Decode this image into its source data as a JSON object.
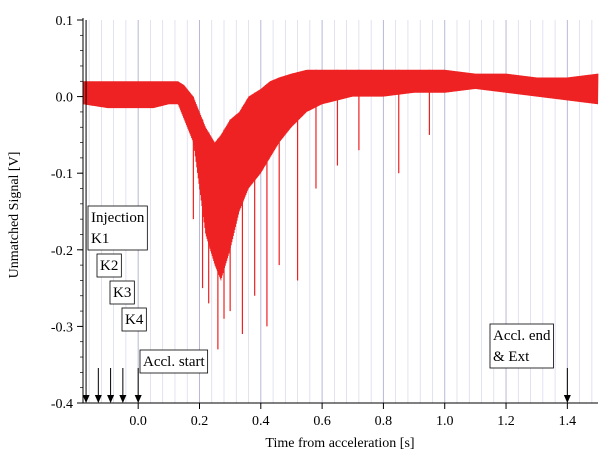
{
  "chart_data": {
    "type": "line",
    "xlabel": "Time from acceleration [s]",
    "ylabel": "Unmatched Signal [V]",
    "xlim": [
      -0.18,
      1.5
    ],
    "ylim": [
      -0.4,
      0.1
    ],
    "xticks": [
      0.0,
      0.2,
      0.4,
      0.6,
      0.8,
      1.0,
      1.2,
      1.4
    ],
    "xtick_labels": [
      "0.0",
      "0.2",
      "0.4",
      "0.6",
      "0.8",
      "1.0",
      "1.2",
      "1.4"
    ],
    "yticks": [
      0.1,
      0.0,
      -0.1,
      -0.2,
      -0.3,
      -0.4
    ],
    "ytick_labels": [
      "0.1",
      "0.0",
      "-0.1",
      "-0.2",
      "-0.3",
      "-0.4"
    ],
    "grid": "vertical",
    "series_color": "#ee2222",
    "series": [
      {
        "x": [
          -0.18,
          -0.1,
          0.0,
          0.05,
          0.1,
          0.13,
          0.15,
          0.18,
          0.2,
          0.22,
          0.25,
          0.27,
          0.3,
          0.33,
          0.36,
          0.4,
          0.43,
          0.46,
          0.5,
          0.55,
          0.6,
          0.7,
          0.8,
          0.9,
          1.0,
          1.1,
          1.2,
          1.3,
          1.4,
          1.5
        ],
        "upper": [
          0.02,
          0.02,
          0.02,
          0.02,
          0.02,
          0.02,
          0.015,
          0.0,
          -0.02,
          -0.04,
          -0.06,
          -0.05,
          -0.03,
          -0.02,
          0.0,
          0.01,
          0.02,
          0.025,
          0.03,
          0.035,
          0.035,
          0.035,
          0.035,
          0.035,
          0.035,
          0.03,
          0.03,
          0.025,
          0.025,
          0.03
        ],
        "lower": [
          -0.01,
          -0.015,
          -0.015,
          -0.015,
          -0.01,
          -0.01,
          -0.03,
          -0.06,
          -0.12,
          -0.18,
          -0.22,
          -0.24,
          -0.2,
          -0.15,
          -0.12,
          -0.1,
          -0.08,
          -0.06,
          -0.04,
          -0.02,
          -0.01,
          0.0,
          0.0,
          0.005,
          0.005,
          0.01,
          0.005,
          0.0,
          -0.005,
          -0.01
        ],
        "spikes": [
          {
            "x": 0.18,
            "y": -0.16
          },
          {
            "x": 0.21,
            "y": -0.25
          },
          {
            "x": 0.23,
            "y": -0.27
          },
          {
            "x": 0.26,
            "y": -0.33
          },
          {
            "x": 0.28,
            "y": -0.29
          },
          {
            "x": 0.3,
            "y": -0.28
          },
          {
            "x": 0.34,
            "y": -0.31
          },
          {
            "x": 0.38,
            "y": -0.26
          },
          {
            "x": 0.42,
            "y": -0.3
          },
          {
            "x": 0.46,
            "y": -0.22
          },
          {
            "x": 0.52,
            "y": -0.24
          },
          {
            "x": 0.58,
            "y": -0.12
          },
          {
            "x": 0.65,
            "y": -0.09
          },
          {
            "x": 0.72,
            "y": -0.07
          },
          {
            "x": 0.85,
            "y": -0.1
          },
          {
            "x": 0.95,
            "y": -0.05
          }
        ]
      }
    ],
    "annotations": [
      {
        "id": "injection",
        "lines": [
          "Injection",
          "K1"
        ],
        "x": -0.17
      },
      {
        "id": "k2",
        "lines": [
          "K2"
        ],
        "x": -0.13
      },
      {
        "id": "k3",
        "lines": [
          "K3"
        ],
        "x": -0.09
      },
      {
        "id": "k4",
        "lines": [
          "K4"
        ],
        "x": -0.05
      },
      {
        "id": "accl-start",
        "lines": [
          "Accl. start"
        ],
        "x": 0.0
      },
      {
        "id": "accl-end",
        "lines": [
          "Accl. end",
          "& Ext"
        ],
        "x": 1.4
      }
    ]
  }
}
